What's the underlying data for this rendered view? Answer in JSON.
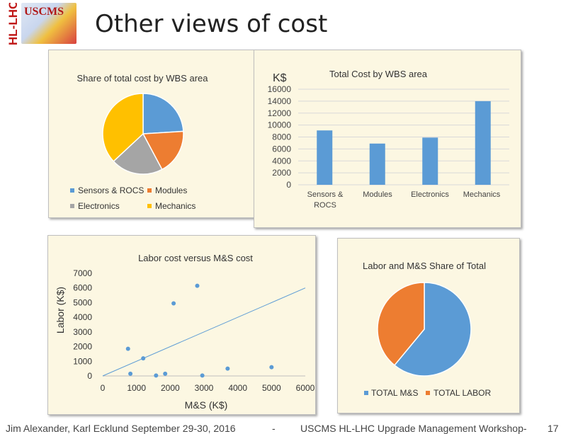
{
  "header": {
    "logo_vertical_text": "HL-LHC",
    "logo_text": "USCMS",
    "title": "Other views of cost"
  },
  "colors": {
    "blue": "#5b9bd5",
    "orange": "#ed7d31",
    "gray": "#a5a5a5",
    "gold": "#ffc000",
    "panel_bg": "#fcf7e2"
  },
  "charts": {
    "wbs_share": {
      "type": "pie",
      "title": "Share of total cost by WBS area",
      "labels": [
        "Sensors & ROCS",
        "Modules",
        "Electronics",
        "Mechanics"
      ],
      "values": [
        9100,
        6900,
        7900,
        14000
      ]
    },
    "wbs_total": {
      "type": "bar",
      "title": "Total Cost by WBS area",
      "ylabel": "K$",
      "categories": [
        "Sensors &\nROCS",
        "Modules",
        "Electronics",
        "Mechanics"
      ],
      "values": [
        9100,
        6900,
        7900,
        14000
      ],
      "ylim": [
        0,
        16000
      ],
      "yticks": [
        "0",
        "2000",
        "4000",
        "6000",
        "8000",
        "10000",
        "12000",
        "14000",
        "16000"
      ]
    },
    "labor_vs_ms": {
      "type": "scatter",
      "title": "Labor cost versus M&S cost",
      "xlabel": "M&S (K$)",
      "ylabel": "Labor (K$)",
      "xlim": [
        0,
        6000
      ],
      "ylim": [
        0,
        7000
      ],
      "xticks": [
        "0",
        "1000",
        "2000",
        "3000",
        "4000",
        "5000",
        "6000"
      ],
      "yticks": [
        "0",
        "1000",
        "2000",
        "3000",
        "4000",
        "5000",
        "6000",
        "7000"
      ],
      "points": [
        [
          750,
          1850
        ],
        [
          820,
          150
        ],
        [
          1200,
          1200
        ],
        [
          1580,
          30
        ],
        [
          1850,
          150
        ],
        [
          2100,
          4950
        ],
        [
          2800,
          6150
        ],
        [
          2950,
          30
        ],
        [
          3700,
          500
        ],
        [
          5000,
          600
        ]
      ],
      "trendline": [
        [
          0,
          0
        ],
        [
          6000,
          6000
        ]
      ]
    },
    "labor_ms_share": {
      "type": "pie",
      "title": "Labor and M&S Share of Total",
      "labels": [
        "TOTAL M&S",
        "TOTAL LABOR"
      ],
      "values": [
        61,
        39
      ]
    }
  },
  "footer": {
    "left": "Jim Alexander, Karl Ecklund September 29-30, 2016",
    "dash": "-",
    "center": "USCMS HL-LHC Upgrade Management Workshop-",
    "page": "17"
  }
}
